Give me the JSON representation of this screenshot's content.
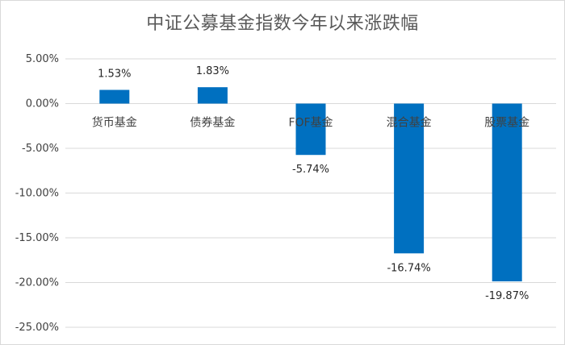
{
  "chart_data": {
    "type": "bar",
    "title": "中证公募基金指数今年以来涨跌幅",
    "xlabel": "",
    "ylabel": "",
    "categories": [
      "货币基金",
      "债券基金",
      "FOF基金",
      "混合基金",
      "股票基金"
    ],
    "values": [
      1.53,
      1.83,
      -5.74,
      -16.74,
      -19.87
    ],
    "value_labels": [
      "1.53%",
      "1.83%",
      "-5.74%",
      "-16.74%",
      "-19.87%"
    ],
    "ylim": [
      -25,
      5
    ],
    "yticks": [
      5,
      0,
      -5,
      -10,
      -15,
      -20,
      -25
    ],
    "ytick_labels": [
      "5.00%",
      "0.00%",
      "-5.00%",
      "-10.00%",
      "-15.00%",
      "-20.00%",
      "-25.00%"
    ],
    "grid": true,
    "legend": "none",
    "bar_color": "#0070C0",
    "grid_color": "#d9d9d9"
  }
}
